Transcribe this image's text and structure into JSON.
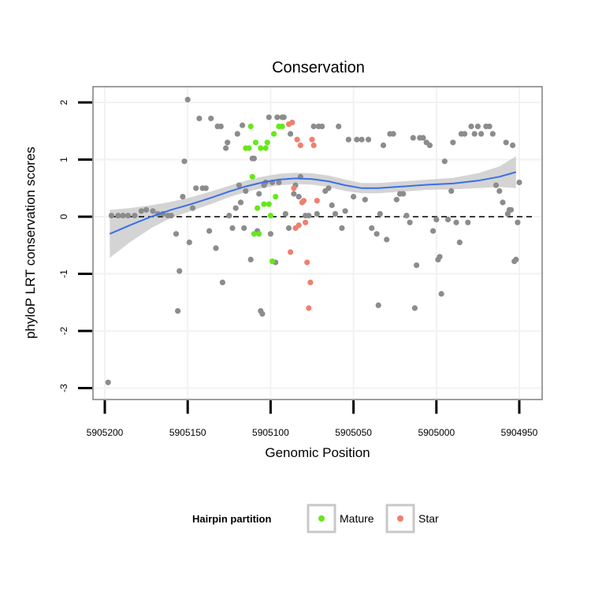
{
  "chart_data": {
    "type": "scatter",
    "title": "Conservation",
    "xlabel": "Genomic Position",
    "ylabel": "phyloP LRT conservation scores",
    "x_reversed": true,
    "xlim": [
      5905204,
      5904946
    ],
    "ylim": [
      -3.1,
      2.25
    ],
    "x_ticks": [
      5905200,
      5905150,
      5905100,
      5905050,
      5905000,
      5904950
    ],
    "x_tick_labels": [
      "5905200",
      "5905150",
      "5905100",
      "5905050",
      "5905000",
      "5904950"
    ],
    "y_ticks": [
      -3,
      -2,
      -1,
      0,
      1,
      2
    ],
    "y_tick_labels": [
      "-3",
      "-2",
      "-1",
      "0",
      "1",
      "2"
    ],
    "reference_line": {
      "y": 0,
      "style": "dashed"
    },
    "colors": {
      "Other": "#8c8c8c",
      "Mature": "#66e81a",
      "Star": "#f0806e",
      "smooth": "#3b6fe8",
      "band": "#cccccc",
      "panel_border": "#7f7f7f",
      "grid": "#f2f2f2"
    },
    "legend": {
      "title": "Hairpin partition",
      "position": "bottom",
      "entries": [
        {
          "name": "Mature",
          "color": "#66e81a"
        },
        {
          "name": "Star",
          "color": "#f0806e"
        }
      ]
    },
    "smooth": {
      "x": [
        5905197,
        5905185,
        5905172,
        5905160,
        5905148,
        5905135,
        5905125,
        5905115,
        5905105,
        5905095,
        5905085,
        5905075,
        5905065,
        5905055,
        5905045,
        5905035,
        5905020,
        5905005,
        5904990,
        5904975,
        5904962,
        5904952
      ],
      "y": [
        -0.3,
        -0.15,
        0.0,
        0.12,
        0.22,
        0.34,
        0.44,
        0.53,
        0.6,
        0.65,
        0.67,
        0.66,
        0.62,
        0.55,
        0.5,
        0.5,
        0.53,
        0.56,
        0.58,
        0.63,
        0.7,
        0.78
      ],
      "lower": [
        -0.72,
        -0.45,
        -0.2,
        -0.02,
        0.1,
        0.23,
        0.34,
        0.43,
        0.5,
        0.55,
        0.57,
        0.56,
        0.52,
        0.45,
        0.41,
        0.41,
        0.44,
        0.47,
        0.48,
        0.5,
        0.52,
        0.5
      ],
      "upper": [
        0.12,
        0.15,
        0.2,
        0.26,
        0.34,
        0.45,
        0.54,
        0.63,
        0.7,
        0.75,
        0.77,
        0.76,
        0.72,
        0.65,
        0.59,
        0.59,
        0.62,
        0.65,
        0.68,
        0.76,
        0.88,
        1.06
      ]
    },
    "series": [
      {
        "name": "Other",
        "points": [
          [
            5905198,
            -2.9
          ],
          [
            5905196,
            0.02
          ],
          [
            5905192,
            0.02
          ],
          [
            5905189,
            0.02
          ],
          [
            5905186,
            0.02
          ],
          [
            5905182,
            0.02
          ],
          [
            5905178,
            0.1
          ],
          [
            5905175,
            0.12
          ],
          [
            5905171,
            0.1
          ],
          [
            5905168,
            0.05
          ],
          [
            5905165,
            0.05
          ],
          [
            5905162,
            0.02
          ],
          [
            5905160,
            0.02
          ],
          [
            5905157,
            -0.3
          ],
          [
            5905156,
            -1.65
          ],
          [
            5905155,
            -0.95
          ],
          [
            5905153,
            0.35
          ],
          [
            5905152,
            0.97
          ],
          [
            5905150,
            2.05
          ],
          [
            5905149,
            -0.45
          ],
          [
            5905147,
            0.15
          ],
          [
            5905145,
            0.5
          ],
          [
            5905143,
            1.72
          ],
          [
            5905141,
            0.5
          ],
          [
            5905139,
            0.5
          ],
          [
            5905137,
            -0.25
          ],
          [
            5905136,
            1.72
          ],
          [
            5905133,
            -0.55
          ],
          [
            5905132,
            1.58
          ],
          [
            5905130,
            1.58
          ],
          [
            5905129,
            -1.15
          ],
          [
            5905127,
            1.2
          ],
          [
            5905126,
            1.3
          ],
          [
            5905125,
            0.02
          ],
          [
            5905123,
            -0.2
          ],
          [
            5905121,
            0.15
          ],
          [
            5905120,
            1.45
          ],
          [
            5905119,
            0.55
          ],
          [
            5905118,
            0.25
          ],
          [
            5905117,
            1.6
          ],
          [
            5905116,
            -0.2
          ],
          [
            5905115,
            0.45
          ],
          [
            5905112,
            -0.75
          ],
          [
            5905111,
            1.02
          ],
          [
            5905110,
            1.02
          ],
          [
            5905108,
            -0.25
          ],
          [
            5905107,
            0.4
          ],
          [
            5905106,
            -1.65
          ],
          [
            5905105,
            -1.7
          ],
          [
            5905104,
            0.55
          ],
          [
            5905103,
            0.6
          ],
          [
            5905101,
            1.74
          ],
          [
            5905100,
            -0.3
          ],
          [
            5905099,
            0.6
          ],
          [
            5905097,
            -0.8
          ],
          [
            5905096,
            1.74
          ],
          [
            5905095,
            0.6
          ],
          [
            5905093,
            1.74
          ],
          [
            5905092,
            1.74
          ],
          [
            5905091,
            0.05
          ],
          [
            5905089,
            -0.2
          ],
          [
            5905088,
            1.45
          ],
          [
            5905086,
            0.4
          ],
          [
            5905085,
            0.55
          ],
          [
            5905083,
            0.35
          ],
          [
            5905082,
            0.7
          ],
          [
            5905079,
            0.02
          ],
          [
            5905077,
            0.02
          ],
          [
            5905074,
            1.58
          ],
          [
            5905072,
            0.05
          ],
          [
            5905071,
            1.58
          ],
          [
            5905069,
            1.58
          ],
          [
            5905067,
            0.45
          ],
          [
            5905065,
            0.5
          ],
          [
            5905063,
            0.2
          ],
          [
            5905061,
            0.05
          ],
          [
            5905059,
            1.58
          ],
          [
            5905057,
            -0.2
          ],
          [
            5905055,
            0.1
          ],
          [
            5905053,
            1.35
          ],
          [
            5905050,
            0.35
          ],
          [
            5905048,
            1.35
          ],
          [
            5905045,
            1.35
          ],
          [
            5905043,
            0.3
          ],
          [
            5905041,
            1.35
          ],
          [
            5905039,
            -0.2
          ],
          [
            5905036,
            -0.3
          ],
          [
            5905035,
            -1.55
          ],
          [
            5905034,
            0.05
          ],
          [
            5905032,
            1.25
          ],
          [
            5905030,
            -0.4
          ],
          [
            5905028,
            1.45
          ],
          [
            5905026,
            1.45
          ],
          [
            5905024,
            0.3
          ],
          [
            5905022,
            0.4
          ],
          [
            5905020,
            0.4
          ],
          [
            5905018,
            0.02
          ],
          [
            5905016,
            -0.1
          ],
          [
            5905014,
            1.38
          ],
          [
            5905013,
            -1.6
          ],
          [
            5905012,
            -0.85
          ],
          [
            5905010,
            1.38
          ],
          [
            5905008,
            1.38
          ],
          [
            5905006,
            1.3
          ],
          [
            5905004,
            1.25
          ],
          [
            5905002,
            -0.25
          ],
          [
            5905000,
            -0.05
          ],
          [
            5904999,
            -0.75
          ],
          [
            5904998,
            -0.7
          ],
          [
            5904997,
            -1.35
          ],
          [
            5904995,
            0.97
          ],
          [
            5904993,
            -0.05
          ],
          [
            5904991,
            0.45
          ],
          [
            5904990,
            1.3
          ],
          [
            5904988,
            -0.1
          ],
          [
            5904986,
            -0.45
          ],
          [
            5904985,
            1.45
          ],
          [
            5904983,
            1.45
          ],
          [
            5904981,
            -0.1
          ],
          [
            5904979,
            1.58
          ],
          [
            5904977,
            1.45
          ],
          [
            5904975,
            1.58
          ],
          [
            5904973,
            1.45
          ],
          [
            5904970,
            1.58
          ],
          [
            5904968,
            1.58
          ],
          [
            5904966,
            1.45
          ],
          [
            5904964,
            0.55
          ],
          [
            5904962,
            0.45
          ],
          [
            5904960,
            0.25
          ],
          [
            5904958,
            1.3
          ],
          [
            5904957,
            0.05
          ],
          [
            5904956,
            0.12
          ],
          [
            5904955,
            0.12
          ],
          [
            5904954,
            1.25
          ],
          [
            5904953,
            -0.78
          ],
          [
            5904952,
            -0.75
          ],
          [
            5904951,
            -0.1
          ],
          [
            5904950,
            0.6
          ]
        ]
      },
      {
        "name": "Mature",
        "points": [
          [
            5905112,
            1.58
          ],
          [
            5905111,
            0.7
          ],
          [
            5905110,
            -0.3
          ],
          [
            5905109,
            1.3
          ],
          [
            5905108,
            0.15
          ],
          [
            5905107,
            -0.3
          ],
          [
            5905106,
            1.2
          ],
          [
            5905104,
            0.22
          ],
          [
            5905103,
            1.2
          ],
          [
            5905102,
            1.3
          ],
          [
            5905101,
            0.22
          ],
          [
            5905100,
            0.02
          ],
          [
            5905099,
            -0.78
          ],
          [
            5905098,
            1.45
          ],
          [
            5905097,
            0.35
          ],
          [
            5905095,
            1.58
          ],
          [
            5905093,
            1.58
          ],
          [
            5905115,
            1.2
          ],
          [
            5905113,
            1.2
          ]
        ]
      },
      {
        "name": "Star",
        "points": [
          [
            5905089,
            1.62
          ],
          [
            5905088,
            -0.62
          ],
          [
            5905087,
            1.65
          ],
          [
            5905086,
            0.5
          ],
          [
            5905085,
            -0.2
          ],
          [
            5905084,
            1.35
          ],
          [
            5905083,
            -0.15
          ],
          [
            5905082,
            1.25
          ],
          [
            5905081,
            0.25
          ],
          [
            5905080,
            0.28
          ],
          [
            5905079,
            -0.1
          ],
          [
            5905078,
            -0.8
          ],
          [
            5905077,
            -1.6
          ],
          [
            5905076,
            -1.15
          ],
          [
            5905075,
            1.35
          ],
          [
            5905074,
            1.25
          ],
          [
            5905072,
            0.28
          ]
        ]
      }
    ]
  }
}
